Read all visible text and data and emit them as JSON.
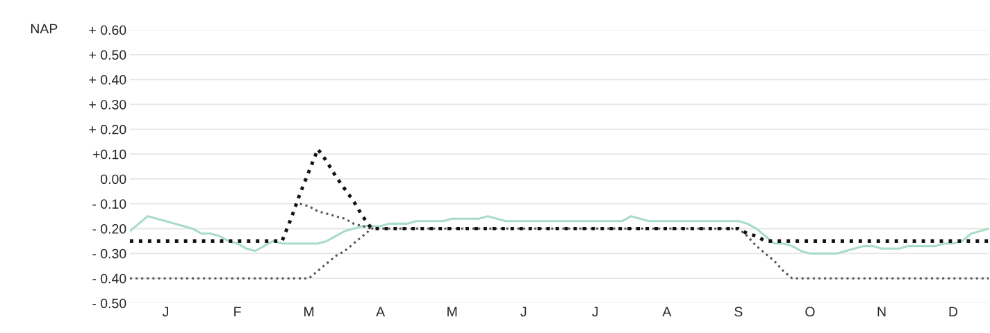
{
  "chart_data": {
    "type": "line",
    "ylabel": "NAP",
    "categories": [
      null,
      null,
      null,
      null,
      "J",
      null,
      null,
      null,
      null,
      null,
      null,
      null,
      "F",
      null,
      null,
      null,
      null,
      null,
      null,
      null,
      "M",
      null,
      null,
      null,
      null,
      null,
      null,
      null,
      "A",
      null,
      null,
      null,
      null,
      null,
      null,
      null,
      "M",
      null,
      null,
      null,
      null,
      null,
      null,
      null,
      "J",
      null,
      null,
      null,
      null,
      null,
      null,
      null,
      "J",
      null,
      null,
      null,
      null,
      null,
      null,
      null,
      "A",
      null,
      null,
      null,
      null,
      null,
      null,
      null,
      "S",
      null,
      null,
      null,
      null,
      null,
      null,
      null,
      "O",
      null,
      null,
      null,
      null,
      null,
      null,
      null,
      "N",
      null,
      null,
      null,
      null,
      null,
      null,
      null,
      "D",
      null,
      null,
      null,
      null
    ],
    "ylim": [
      -0.5,
      0.6
    ],
    "yticks": [
      {
        "value": 0.6,
        "label": "+ 0.60"
      },
      {
        "value": 0.5,
        "label": "+ 0.50"
      },
      {
        "value": 0.4,
        "label": "+ 0.40"
      },
      {
        "value": 0.3,
        "label": "+ 0.30"
      },
      {
        "value": 0.2,
        "label": "+ 0.20"
      },
      {
        "value": 0.1,
        "label": "+0.10"
      },
      {
        "value": 0,
        "label": "0.00"
      },
      {
        "value": -0.1,
        "label": "- 0.10"
      },
      {
        "value": -0.2,
        "label": "- 0.20"
      },
      {
        "value": -0.3,
        "label": "- 0.30"
      },
      {
        "value": -0.4,
        "label": "- 0.40"
      },
      {
        "value": -0.5,
        "label": "- 0.50"
      }
    ],
    "grid": "y",
    "legend": false,
    "series": [
      {
        "color": "#a8dcc8",
        "line_style": "solid",
        "values": [
          -0.21,
          -0.18,
          -0.15,
          -0.16,
          -0.17,
          -0.18,
          -0.19,
          -0.2,
          -0.22,
          -0.22,
          -0.23,
          -0.25,
          -0.26,
          -0.28,
          -0.29,
          -0.27,
          -0.25,
          -0.26,
          -0.26,
          -0.26,
          -0.26,
          -0.26,
          -0.25,
          -0.23,
          -0.21,
          -0.2,
          -0.19,
          -0.19,
          -0.19,
          -0.18,
          -0.18,
          -0.18,
          -0.17,
          -0.17,
          -0.17,
          -0.17,
          -0.16,
          -0.16,
          -0.16,
          -0.16,
          -0.15,
          -0.16,
          -0.17,
          -0.17,
          -0.17,
          -0.17,
          -0.17,
          -0.17,
          -0.17,
          -0.17,
          -0.17,
          -0.17,
          -0.17,
          -0.17,
          -0.17,
          -0.17,
          -0.15,
          -0.16,
          -0.17,
          -0.17,
          -0.17,
          -0.17,
          -0.17,
          -0.17,
          -0.17,
          -0.17,
          -0.17,
          -0.17,
          -0.17,
          -0.18,
          -0.2,
          -0.23,
          -0.26,
          -0.26,
          -0.27,
          -0.29,
          -0.3,
          -0.3,
          -0.3,
          -0.3,
          -0.29,
          -0.28,
          -0.27,
          -0.27,
          -0.28,
          -0.28,
          -0.28,
          -0.27,
          -0.27,
          -0.27,
          -0.27,
          -0.26,
          -0.26,
          -0.25,
          -0.22,
          -0.21,
          -0.2
        ]
      },
      {
        "color": "#555555",
        "line_style": "dotted",
        "values": [
          -0.4,
          -0.4,
          -0.4,
          -0.4,
          -0.4,
          -0.4,
          -0.4,
          -0.4,
          -0.4,
          -0.4,
          -0.4,
          -0.4,
          -0.4,
          -0.4,
          -0.4,
          -0.4,
          -0.4,
          -0.4,
          -0.4,
          -0.4,
          -0.4,
          -0.37,
          -0.34,
          -0.31,
          -0.29,
          -0.26,
          -0.23,
          -0.2,
          -0.2,
          -0.2,
          -0.2,
          -0.2,
          -0.2,
          -0.2,
          -0.2,
          -0.2,
          -0.2,
          -0.2,
          -0.2,
          -0.2,
          -0.2,
          -0.2,
          -0.2,
          -0.2,
          -0.2,
          -0.2,
          -0.2,
          -0.2,
          -0.2,
          -0.2,
          -0.2,
          -0.2,
          -0.2,
          -0.2,
          -0.2,
          -0.2,
          -0.2,
          -0.2,
          -0.2,
          -0.2,
          -0.2,
          -0.2,
          -0.2,
          -0.2,
          -0.2,
          -0.2,
          -0.2,
          -0.2,
          -0.2,
          -0.23,
          -0.27,
          -0.3,
          -0.33,
          -0.37,
          -0.4,
          -0.4,
          -0.4,
          -0.4,
          -0.4,
          -0.4,
          -0.4,
          -0.4,
          -0.4,
          -0.4,
          -0.4,
          -0.4,
          -0.4,
          -0.4,
          -0.4,
          -0.4,
          -0.4,
          -0.4,
          -0.4,
          -0.4,
          -0.4,
          -0.4,
          -0.4
        ]
      },
      {
        "color": "#555555",
        "line_style": "dotted",
        "values": [
          null,
          null,
          null,
          null,
          null,
          null,
          null,
          null,
          null,
          null,
          null,
          null,
          null,
          null,
          null,
          null,
          null,
          null,
          null,
          -0.1,
          -0.11,
          -0.13,
          -0.14,
          -0.15,
          -0.16,
          -0.18,
          -0.19,
          -0.2,
          null,
          null,
          null,
          null,
          null,
          null,
          null,
          null,
          null,
          null,
          null,
          null,
          null,
          null,
          null,
          null,
          null,
          null,
          null,
          null,
          null,
          null,
          null,
          null,
          null,
          null,
          null,
          null,
          null,
          null,
          null,
          null,
          null,
          null,
          null,
          null,
          null,
          null,
          null,
          null,
          null,
          null,
          null,
          null,
          null,
          null,
          null,
          null,
          null,
          null,
          null,
          null,
          null,
          null,
          null,
          null,
          null,
          null,
          null,
          null,
          null,
          null,
          null,
          null,
          null,
          null,
          null,
          null,
          null
        ]
      },
      {
        "color": "#111111",
        "line_style": "dotted",
        "values": [
          -0.25,
          -0.25,
          -0.25,
          -0.25,
          -0.25,
          -0.25,
          -0.25,
          -0.25,
          -0.25,
          -0.25,
          -0.25,
          -0.25,
          -0.25,
          -0.25,
          -0.25,
          -0.25,
          -0.25,
          -0.25,
          -0.16,
          -0.06,
          0.03,
          0.12,
          0.07,
          0.01,
          -0.04,
          -0.09,
          -0.15,
          -0.2,
          -0.2,
          -0.2,
          -0.2,
          -0.2,
          -0.2,
          -0.2,
          -0.2,
          -0.2,
          -0.2,
          -0.2,
          -0.2,
          -0.2,
          -0.2,
          -0.2,
          -0.2,
          -0.2,
          -0.2,
          -0.2,
          -0.2,
          -0.2,
          -0.2,
          -0.2,
          -0.2,
          -0.2,
          -0.2,
          -0.2,
          -0.2,
          -0.2,
          -0.2,
          -0.2,
          -0.2,
          -0.2,
          -0.2,
          -0.2,
          -0.2,
          -0.2,
          -0.2,
          -0.2,
          -0.2,
          -0.2,
          -0.2,
          -0.22,
          -0.23,
          -0.25,
          -0.25,
          -0.25,
          -0.25,
          -0.25,
          -0.25,
          -0.25,
          -0.25,
          -0.25,
          -0.25,
          -0.25,
          -0.25,
          -0.25,
          -0.25,
          -0.25,
          -0.25,
          -0.25,
          -0.25,
          -0.25,
          -0.25,
          -0.25,
          -0.25,
          -0.25,
          -0.25,
          -0.25,
          -0.25
        ]
      }
    ]
  }
}
